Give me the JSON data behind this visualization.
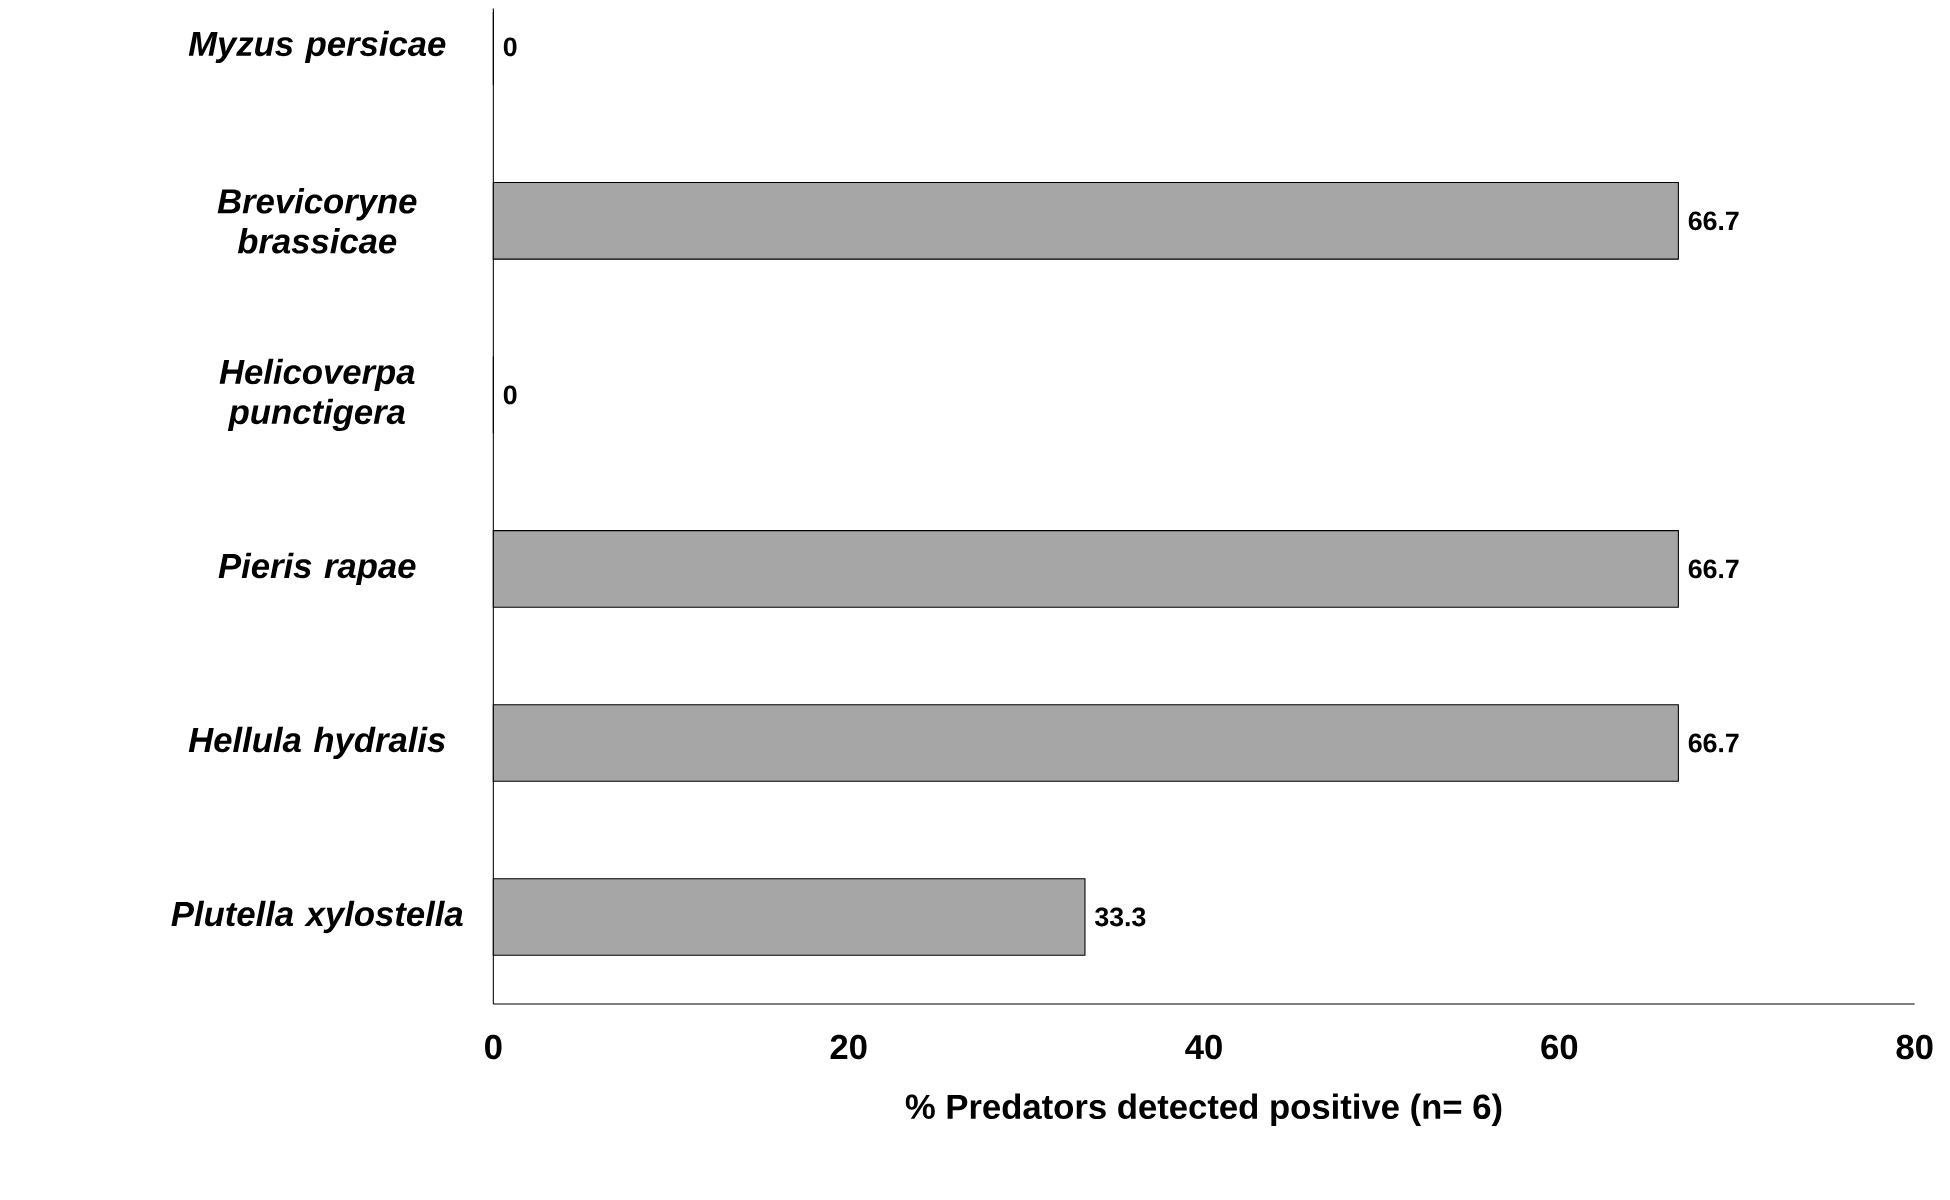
{
  "chart_data": {
    "type": "bar",
    "orientation": "horizontal",
    "categories": [
      "Myzus persicae",
      "Brevicoryne brassicae",
      "Helicoverpa punctigera",
      "Pieris rapae",
      "Hellula hydralis",
      "Plutella xylostella"
    ],
    "values": [
      0,
      66.7,
      0,
      66.7,
      66.7,
      33.3
    ],
    "color": "#a6a6a6",
    "xlim": [
      0,
      80
    ],
    "xticks": [
      0,
      20,
      40,
      60,
      80
    ],
    "xlabel": "% Predators detected positive (n= 6)",
    "data_labels": true
  }
}
